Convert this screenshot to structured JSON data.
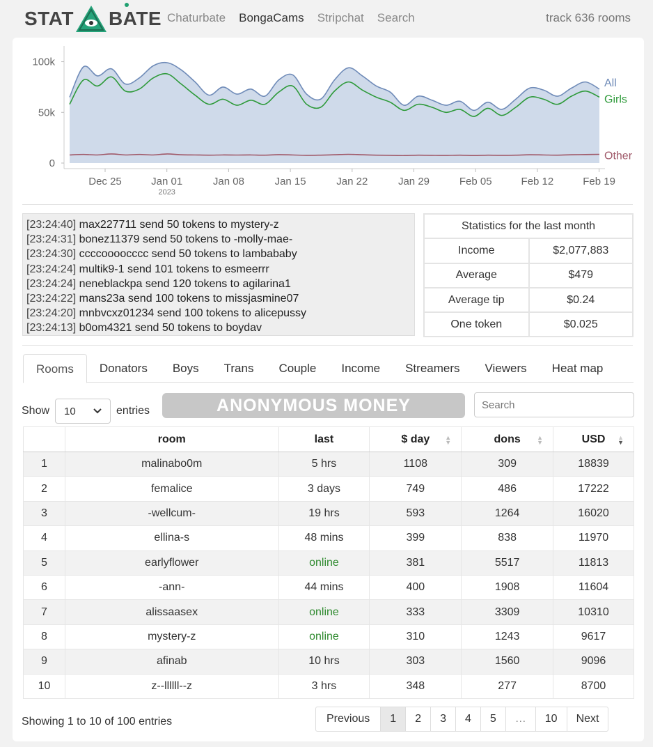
{
  "header": {
    "logo_left": "STAT",
    "logo_right": "BATE",
    "nav": [
      "Chaturbate",
      "BongaCams",
      "Stripchat",
      "Search"
    ],
    "active_nav": "BongaCams",
    "track": "track 636 rooms"
  },
  "chart_data": {
    "type": "area",
    "yticks": [
      "100k",
      "50k",
      "0"
    ],
    "ylim": [
      0,
      110000
    ],
    "xticks": [
      "Dec 25",
      "Jan 01",
      "Jan 08",
      "Jan 15",
      "Jan 22",
      "Jan 29",
      "Feb 05",
      "Feb 12",
      "Feb 19"
    ],
    "xtick_sub": "2023",
    "series": [
      {
        "name": "All",
        "color": "#6f8bb8",
        "values": [
          65000,
          95000,
          86000,
          93000,
          78000,
          84000,
          96000,
          99000,
          92000,
          80000,
          67000,
          75000,
          68000,
          73000,
          66000,
          82000,
          87000,
          68000,
          63000,
          82000,
          94000,
          86000,
          76000,
          70000,
          57000,
          66000,
          62000,
          57000,
          61000,
          52000,
          60000,
          53000,
          63000,
          74000,
          72000,
          66000,
          74000,
          80000,
          73000
        ]
      },
      {
        "name": "Girls",
        "color": "#2e9a3a",
        "values": [
          58000,
          82000,
          76000,
          85000,
          71000,
          73000,
          84000,
          88000,
          78000,
          67000,
          58000,
          63000,
          57000,
          62000,
          58000,
          70000,
          76000,
          58000,
          55000,
          71000,
          80000,
          72000,
          65000,
          60000,
          52000,
          58000,
          55000,
          50000,
          53000,
          46000,
          54000,
          47000,
          55000,
          65000,
          63000,
          58000,
          66000,
          71000,
          65000
        ]
      },
      {
        "name": "Other",
        "color": "#a05a6a",
        "values": [
          8000,
          8500,
          8000,
          9000,
          8000,
          8500,
          8000,
          9000,
          8200,
          8000,
          7800,
          8000,
          7900,
          8000,
          7800,
          8300,
          8000,
          7600,
          7800,
          8200,
          8600,
          8200,
          7800,
          7600,
          7400,
          7800,
          7600,
          7500,
          7800,
          7400,
          7800,
          7600,
          7800,
          8200,
          8000,
          7800,
          8200,
          8400,
          8600
        ]
      }
    ]
  },
  "feed": [
    {
      "time": "[23:24:40]",
      "text": "max227711 send 50 tokens to mystery-z"
    },
    {
      "time": "[23:24:31]",
      "text": "bonez11379 send 50 tokens to -molly-mae-"
    },
    {
      "time": "[23:24:30]",
      "text": "ccccoooocccc send 50 tokens to lambababy"
    },
    {
      "time": "[23:24:24]",
      "text": "multik9-1 send 101 tokens to esmeerrr"
    },
    {
      "time": "[23:24:24]",
      "text": "neneblackpa send 120 tokens to agilarina1"
    },
    {
      "time": "[23:24:22]",
      "text": "mans23a send 100 tokens to missjasmine07"
    },
    {
      "time": "[23:24:20]",
      "text": "mnbvcxz01234 send 100 tokens to alicepussy"
    },
    {
      "time": "[23:24:13]",
      "text": "b0om4321 send 50 tokens to boydav"
    }
  ],
  "stats": {
    "title": "Statistics for the last month",
    "rows": [
      {
        "label": "Income",
        "value": "$2,077,883"
      },
      {
        "label": "Average",
        "value": "$479"
      },
      {
        "label": "Average tip",
        "value": "$0.24"
      },
      {
        "label": "One token",
        "value": "$0.025"
      }
    ]
  },
  "tabs": [
    "Rooms",
    "Donators",
    "Boys",
    "Trans",
    "Couple",
    "Income",
    "Streamers",
    "Viewers",
    "Heat map"
  ],
  "controls": {
    "show": "Show",
    "entries_value": "10",
    "entries": "entries",
    "banner": "ANONYMOUS MONEY",
    "search_placeholder": "Search"
  },
  "table": {
    "columns": [
      "",
      "room",
      "last",
      "$ day",
      "dons",
      "USD"
    ],
    "rows": [
      [
        "1",
        "malinabo0m",
        "5 hrs",
        "1108",
        "309",
        "18839"
      ],
      [
        "2",
        "femalice",
        "3 days",
        "749",
        "486",
        "17222"
      ],
      [
        "3",
        "-wellcum-",
        "19 hrs",
        "593",
        "1264",
        "16020"
      ],
      [
        "4",
        "ellina-s",
        "48 mins",
        "399",
        "838",
        "11970"
      ],
      [
        "5",
        "earlyflower",
        "online",
        "381",
        "5517",
        "11813"
      ],
      [
        "6",
        "-ann-",
        "44 mins",
        "400",
        "1908",
        "11604"
      ],
      [
        "7",
        "alissaasex",
        "online",
        "333",
        "3309",
        "10310"
      ],
      [
        "8",
        "mystery-z",
        "online",
        "310",
        "1243",
        "9617"
      ],
      [
        "9",
        "afinab",
        "10 hrs",
        "303",
        "1560",
        "9096"
      ],
      [
        "10",
        "z--llllll--z",
        "3 hrs",
        "348",
        "277",
        "8700"
      ]
    ]
  },
  "footer": {
    "info": "Showing 1 to 10 of 100 entries",
    "pages": [
      "Previous",
      "1",
      "2",
      "3",
      "4",
      "5",
      "…",
      "10",
      "Next"
    ],
    "current": "1"
  }
}
